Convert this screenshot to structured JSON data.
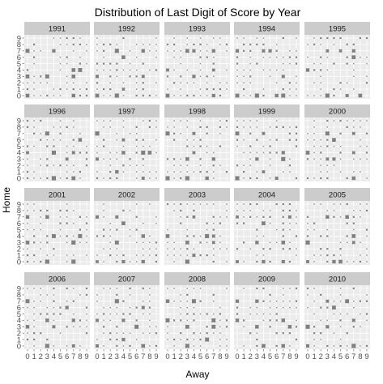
{
  "chart_data": {
    "type": "scatter",
    "title": "Distribution of Last Digit of Score by Year",
    "xlabel": "Away",
    "ylabel": "Home",
    "facet_by": "year",
    "panels": [
      "1991",
      "1992",
      "1993",
      "1994",
      "1995",
      "1996",
      "1997",
      "1998",
      "1999",
      "2000",
      "2001",
      "2002",
      "2003",
      "2004",
      "2005",
      "2006",
      "2007",
      "2008",
      "2009",
      "2010"
    ],
    "x_ticks": [
      "0",
      "1",
      "2",
      "3",
      "4",
      "5",
      "6",
      "7",
      "8",
      "9"
    ],
    "y_ticks": [
      "0",
      "1",
      "2",
      "3",
      "4",
      "5",
      "6",
      "7",
      "8",
      "9"
    ],
    "xlim": [
      0,
      9
    ],
    "ylim": [
      0,
      9
    ],
    "grid": true,
    "point_shape": "square",
    "size_encodes": "count",
    "colors": {
      "panel_bg": "#ebebeb",
      "grid": "#ffffff",
      "strip_bg": "#cccccc",
      "point": "#808080"
    },
    "strong_points": {
      "1991": [
        [
          0,
          3
        ],
        [
          0,
          7
        ],
        [
          3,
          3
        ],
        [
          4,
          7
        ],
        [
          7,
          0
        ],
        [
          7,
          3
        ],
        [
          7,
          4
        ],
        [
          0,
          0
        ],
        [
          8,
          4
        ]
      ],
      "1992": [
        [
          0,
          0
        ],
        [
          0,
          3
        ],
        [
          3,
          0
        ],
        [
          3,
          7
        ],
        [
          7,
          7
        ],
        [
          4,
          6
        ],
        [
          7,
          3
        ],
        [
          4,
          1
        ]
      ],
      "1993": [
        [
          0,
          0
        ],
        [
          3,
          7
        ],
        [
          4,
          7
        ],
        [
          7,
          0
        ],
        [
          7,
          7
        ],
        [
          7,
          4
        ],
        [
          0,
          4
        ],
        [
          4,
          3
        ]
      ],
      "1994": [
        [
          0,
          7
        ],
        [
          3,
          0
        ],
        [
          4,
          7
        ],
        [
          6,
          0
        ],
        [
          7,
          3
        ],
        [
          7,
          0
        ],
        [
          0,
          0
        ],
        [
          5,
          7
        ]
      ],
      "1995": [
        [
          0,
          4
        ],
        [
          3,
          0
        ],
        [
          3,
          7
        ],
        [
          7,
          7
        ],
        [
          7,
          6
        ],
        [
          6,
          0
        ],
        [
          5,
          7
        ],
        [
          8,
          0
        ]
      ],
      "1996": [
        [
          0,
          4
        ],
        [
          3,
          7
        ],
        [
          4,
          4
        ],
        [
          6,
          3
        ],
        [
          7,
          0
        ],
        [
          7,
          4
        ],
        [
          8,
          6
        ],
        [
          4,
          0
        ]
      ],
      "1997": [
        [
          0,
          3
        ],
        [
          4,
          4
        ],
        [
          4,
          6
        ],
        [
          7,
          0
        ],
        [
          7,
          4
        ],
        [
          0,
          7
        ],
        [
          3,
          1
        ],
        [
          8,
          4
        ]
      ],
      "1998": [
        [
          0,
          7
        ],
        [
          3,
          3
        ],
        [
          4,
          7
        ],
        [
          6,
          0
        ],
        [
          7,
          3
        ],
        [
          0,
          0
        ],
        [
          3,
          0
        ],
        [
          4,
          4
        ]
      ],
      "1999": [
        [
          0,
          7
        ],
        [
          3,
          3
        ],
        [
          4,
          7
        ],
        [
          7,
          4
        ],
        [
          7,
          3
        ],
        [
          0,
          0
        ],
        [
          4,
          1
        ],
        [
          6,
          0
        ]
      ],
      "2000": [
        [
          0,
          4
        ],
        [
          3,
          3
        ],
        [
          3,
          7
        ],
        [
          7,
          0
        ],
        [
          7,
          7
        ],
        [
          4,
          3
        ],
        [
          7,
          4
        ],
        [
          4,
          6
        ]
      ],
      "2001": [
        [
          0,
          7
        ],
        [
          0,
          3
        ],
        [
          3,
          7
        ],
        [
          3,
          0
        ],
        [
          7,
          0
        ],
        [
          7,
          3
        ],
        [
          4,
          4
        ],
        [
          8,
          4
        ]
      ],
      "2002": [
        [
          0,
          7
        ],
        [
          3,
          3
        ],
        [
          3,
          7
        ],
        [
          4,
          6
        ],
        [
          7,
          4
        ],
        [
          7,
          0
        ],
        [
          0,
          0
        ],
        [
          4,
          0
        ]
      ],
      "2003": [
        [
          0,
          4
        ],
        [
          3,
          0
        ],
        [
          4,
          7
        ],
        [
          6,
          4
        ],
        [
          7,
          3
        ],
        [
          7,
          4
        ],
        [
          3,
          3
        ],
        [
          4,
          1
        ]
      ],
      "2004": [
        [
          0,
          7
        ],
        [
          3,
          3
        ],
        [
          4,
          6
        ],
        [
          7,
          0
        ],
        [
          7,
          3
        ],
        [
          0,
          0
        ],
        [
          4,
          0
        ],
        [
          8,
          7
        ]
      ],
      "2005": [
        [
          0,
          0
        ],
        [
          3,
          7
        ],
        [
          4,
          0
        ],
        [
          7,
          3
        ],
        [
          7,
          4
        ],
        [
          6,
          7
        ],
        [
          0,
          3
        ],
        [
          5,
          0
        ]
      ],
      "2006": [
        [
          0,
          7
        ],
        [
          0,
          3
        ],
        [
          3,
          4
        ],
        [
          4,
          3
        ],
        [
          7,
          0
        ],
        [
          7,
          4
        ],
        [
          3,
          0
        ],
        [
          6,
          6
        ]
      ],
      "2007": [
        [
          0,
          4
        ],
        [
          0,
          0
        ],
        [
          3,
          7
        ],
        [
          4,
          4
        ],
        [
          7,
          0
        ],
        [
          7,
          6
        ],
        [
          6,
          3
        ],
        [
          4,
          1
        ]
      ],
      "2008": [
        [
          0,
          4
        ],
        [
          3,
          0
        ],
        [
          4,
          7
        ],
        [
          7,
          3
        ],
        [
          7,
          4
        ],
        [
          3,
          3
        ],
        [
          0,
          7
        ],
        [
          6,
          1
        ]
      ],
      "2009": [
        [
          0,
          7
        ],
        [
          3,
          7
        ],
        [
          3,
          3
        ],
        [
          4,
          0
        ],
        [
          7,
          4
        ],
        [
          7,
          0
        ],
        [
          8,
          3
        ],
        [
          0,
          4
        ]
      ],
      "2010": [
        [
          0,
          0
        ],
        [
          3,
          3
        ],
        [
          3,
          7
        ],
        [
          7,
          0
        ],
        [
          7,
          4
        ],
        [
          4,
          6
        ],
        [
          6,
          7
        ],
        [
          0,
          3
        ]
      ]
    }
  }
}
